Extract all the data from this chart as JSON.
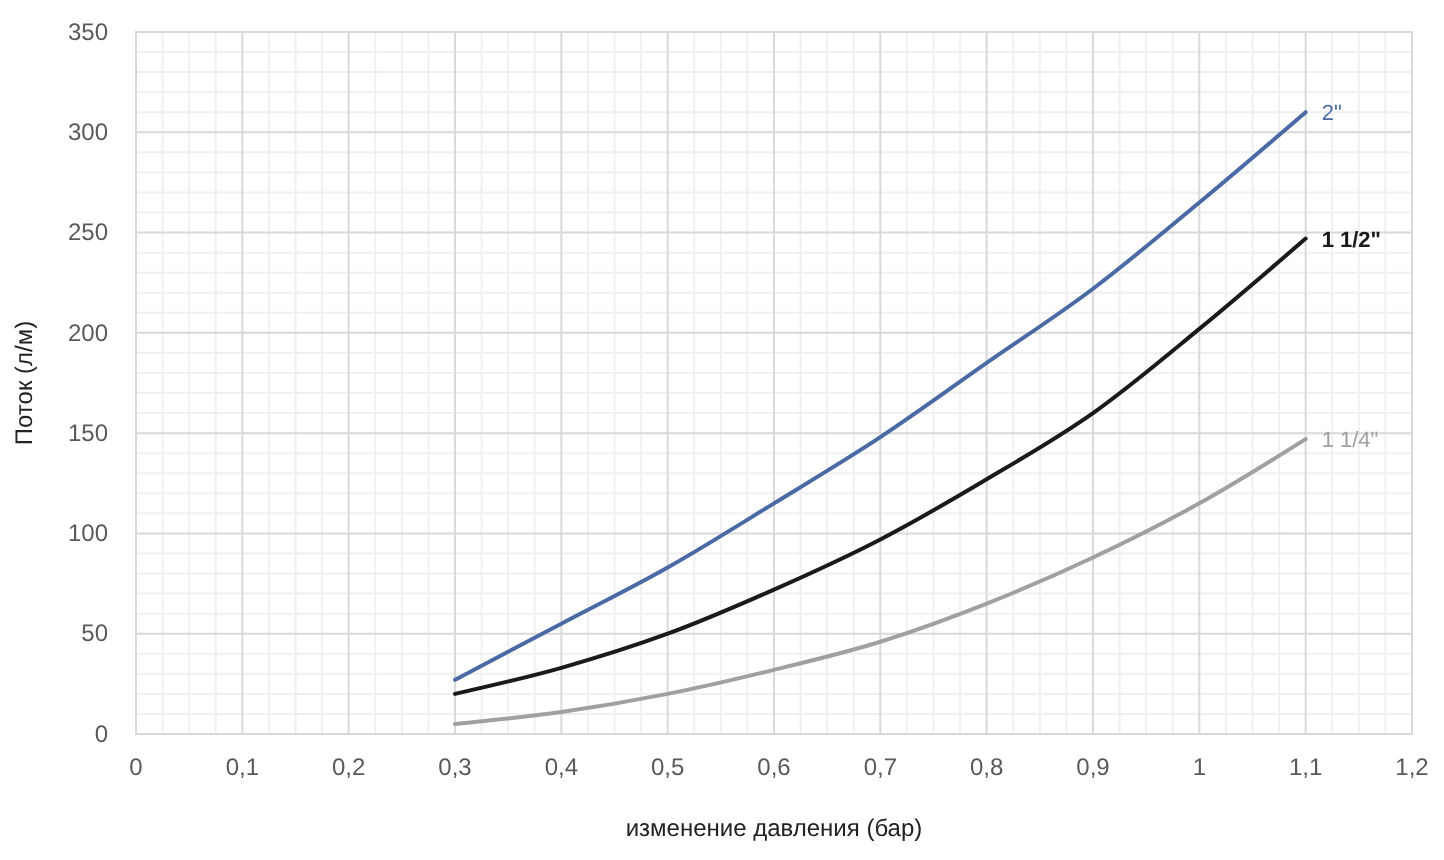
{
  "chart_data": {
    "type": "line",
    "xlabel": "изменение давления (бар)",
    "ylabel": "Поток (л/м)",
    "x": [
      0.3,
      0.4,
      0.5,
      0.6,
      0.7,
      0.8,
      0.9,
      1.0,
      1.1
    ],
    "series": [
      {
        "name": "2\"",
        "color": "#4a6aa5",
        "values": [
          27,
          55,
          83,
          115,
          148,
          185,
          222,
          265,
          310
        ]
      },
      {
        "name": "1 1/2\"",
        "color": "#1a1a1a",
        "values": [
          20,
          33,
          50,
          72,
          97,
          127,
          160,
          202,
          247
        ]
      },
      {
        "name": "1 1/4\"",
        "color": "#a0a0a0",
        "values": [
          5,
          11,
          20,
          32,
          46,
          65,
          88,
          115,
          147
        ]
      }
    ],
    "xlim": [
      0,
      1.2
    ],
    "xticks": [
      0,
      {
        "value": 0.1,
        "label": "0,1"
      },
      {
        "value": 0.2,
        "label": "0,2"
      },
      {
        "value": 0.3,
        "label": "0,3"
      },
      {
        "value": 0.4,
        "label": "0,4"
      },
      {
        "value": 0.5,
        "label": "0,5"
      },
      {
        "value": 0.6,
        "label": "0,6"
      },
      {
        "value": 0.7,
        "label": "0,7"
      },
      {
        "value": 0.8,
        "label": "0,8"
      },
      {
        "value": 0.9,
        "label": "0,9"
      },
      1,
      {
        "value": 1.1,
        "label": "1,1"
      },
      {
        "value": 1.2,
        "label": "1,2"
      }
    ],
    "ylim": [
      0,
      350
    ],
    "yticks": [
      0,
      50,
      100,
      150,
      200,
      250,
      300,
      350
    ],
    "grid": true,
    "legend": false,
    "marker": "none",
    "line_style": "solid"
  }
}
